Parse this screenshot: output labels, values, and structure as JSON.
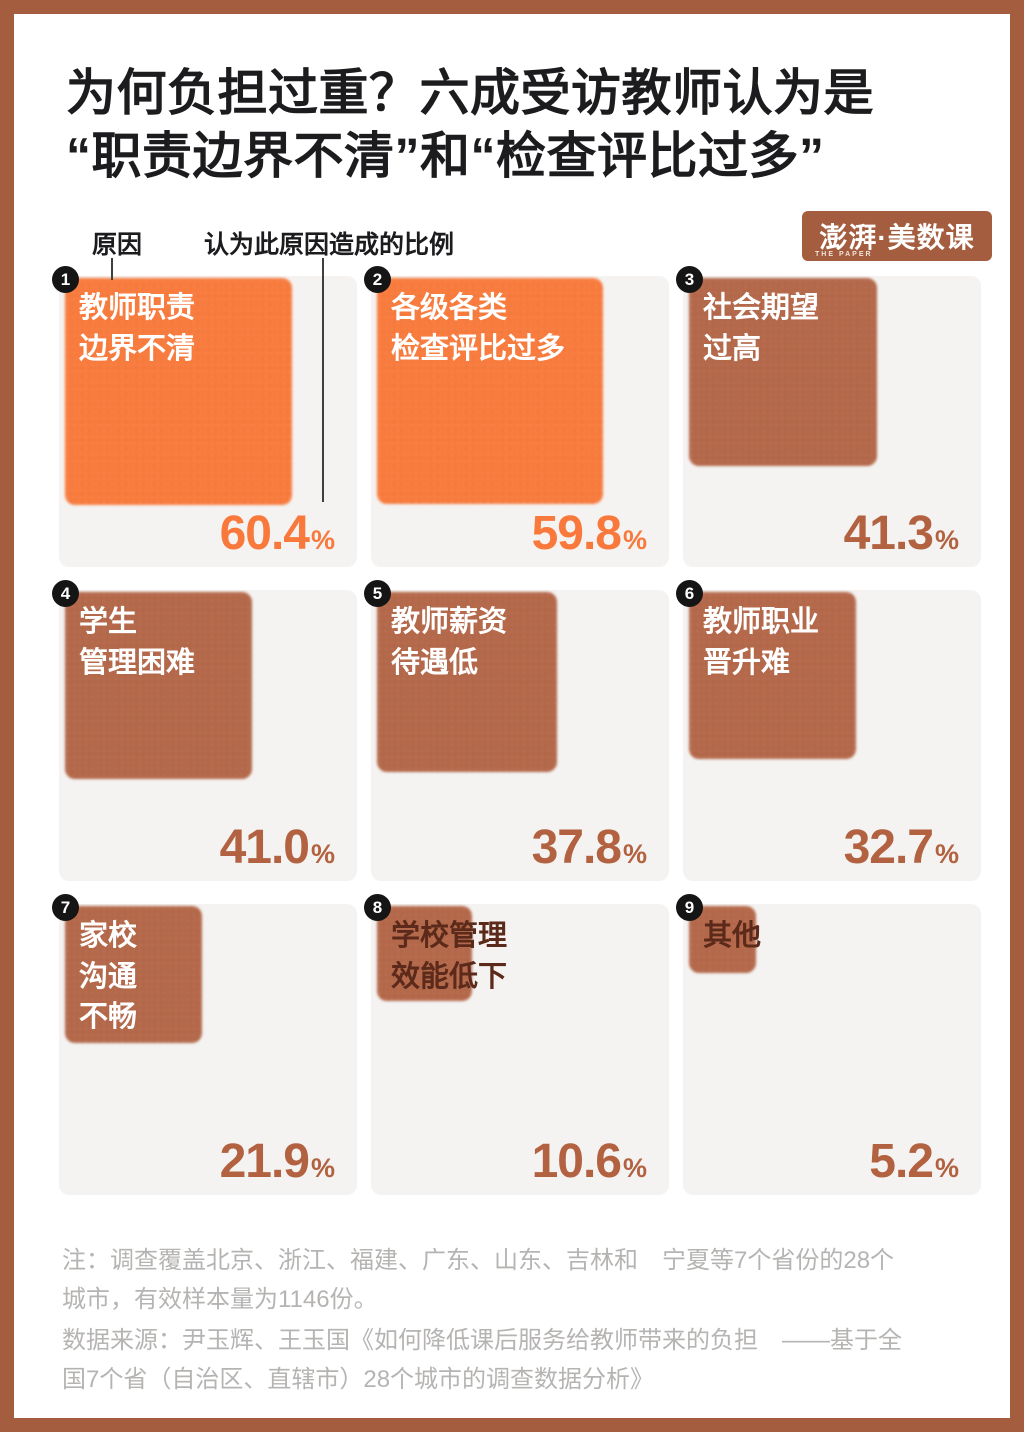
{
  "page": {
    "title": "为何负担过重？六成受访教师认为是\n“职责边界不清”和“检查评比过多”",
    "logo": {
      "text": "澎湃·美数课",
      "subtext": "THE PAPER"
    },
    "legend": {
      "reason_label": "原因",
      "ratio_label": "认为此原因造成的比例"
    },
    "notes": {
      "survey": "注：调查覆盖北京、浙江、福建、广东、山东、吉林和　宁夏等7个省份的28个\n城市，有效样本量为1146份。",
      "source": "数据来源：尹玉辉、王玉国《如何降低课后服务给教师带来的负担　——基于全\n国7个省（自治区、直辖市）28个城市的调查数据分析》"
    },
    "colors": {
      "frame_brown": "#a45d3e",
      "card_gray": "#f4f3f1",
      "accent_orange": "#f87b3d",
      "accent_brown": "#b4684a",
      "dark_label_brown": "#5c2a1a",
      "note_gray": "#b6b4b2",
      "title_black": "#1c1c1f"
    }
  },
  "tiles": {
    "unit": "%",
    "items": [
      {
        "num": "1",
        "label": "教师职责\n边界不清",
        "value": 60.4,
        "value_text": "60.4",
        "square_color": "#f87b3d",
        "value_color": "#f8793b",
        "label_color": "#ffffff"
      },
      {
        "num": "2",
        "label": "各级各类\n检查评比过多",
        "value": 59.8,
        "value_text": "59.8",
        "square_color": "#f87b3d",
        "value_color": "#f8793b",
        "label_color": "#ffffff"
      },
      {
        "num": "3",
        "label": "社会期望\n过高",
        "value": 41.3,
        "value_text": "41.3",
        "square_color": "#b4684a",
        "value_color": "#b26240",
        "label_color": "#ffffff"
      },
      {
        "num": "4",
        "label": "学生\n管理困难",
        "value": 41.0,
        "value_text": "41.0",
        "square_color": "#b4684a",
        "value_color": "#b26240",
        "label_color": "#ffffff"
      },
      {
        "num": "5",
        "label": "教师薪资\n待遇低",
        "value": 37.8,
        "value_text": "37.8",
        "square_color": "#b4684a",
        "value_color": "#b26240",
        "label_color": "#ffffff"
      },
      {
        "num": "6",
        "label": "教师职业\n晋升难",
        "value": 32.7,
        "value_text": "32.7",
        "square_color": "#b4684a",
        "value_color": "#b26240",
        "label_color": "#ffffff"
      },
      {
        "num": "7",
        "label": "家校\n沟通\n不畅",
        "value": 21.9,
        "value_text": "21.9",
        "square_color": "#b4684a",
        "value_color": "#b26240",
        "label_color": "#ffffff"
      },
      {
        "num": "8",
        "label": "学校管理\n效能低下",
        "value": 10.6,
        "value_text": "10.6",
        "square_color": "#b4684a",
        "value_color": "#b26240",
        "label_color": "#5c2a1a"
      },
      {
        "num": "9",
        "label": "其他",
        "value": 5.2,
        "value_text": "5.2",
        "square_color": "#b4684a",
        "value_color": "#b26240",
        "label_color": "#5c2a1a"
      }
    ]
  },
  "chart_data": {
    "type": "proportional-area-square",
    "title": "为何负担过重？六成受访教师认为是“职责边界不清”和“检查评比过多”",
    "legend": [
      "原因",
      "认为此原因造成的比例"
    ],
    "categories": [
      "教师职责边界不清",
      "各级各类检查评比过多",
      "社会期望过高",
      "学生管理困难",
      "教师薪资待遇低",
      "教师职业晋升难",
      "家校沟通不畅",
      "学校管理效能低下",
      "其他"
    ],
    "values": [
      60.4,
      59.8,
      41.3,
      41.0,
      37.8,
      32.7,
      21.9,
      10.6,
      5.2
    ],
    "unit": "%",
    "layout": "3x3 grid, square side proportional to sqrt(value), top two highlighted orange, others brown",
    "notes": [
      "注：调查覆盖北京、浙江、福建、广东、山东、吉林和　宁夏等7个省份的28个城市，有效样本量为1146份。",
      "数据来源：尹玉辉、王玉国《如何降低课后服务给教师带来的负担　——基于全国7个省（自治区、直辖市）28个城市的调查数据分析》"
    ]
  }
}
